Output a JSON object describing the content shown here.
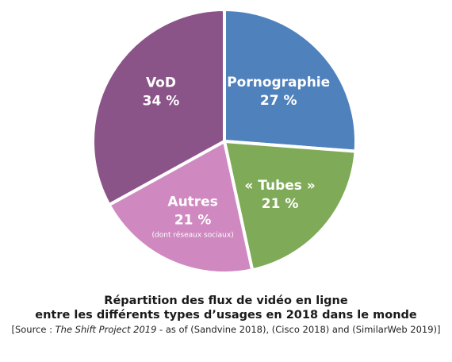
{
  "chart_data": {
    "type": "pie",
    "slices": [
      {
        "label": "Pornographie",
        "value": 27,
        "value_text": "27 %",
        "color": "#4f81bd"
      },
      {
        "label": "« Tubes »",
        "value": 21,
        "value_text": "21 %",
        "color": "#7faa57"
      },
      {
        "label": "Autres",
        "value": 21,
        "value_text": "21 %",
        "note": "(dont réseaux sociaux)",
        "color": "#cf89c0"
      },
      {
        "label": "VoD",
        "value": 34,
        "value_text": "34 %",
        "color": "#8b5489"
      }
    ]
  },
  "caption": {
    "line1": "Répartition des flux de vidéo en ligne",
    "line2": "entre les différents types d’usages en 2018 dans le monde",
    "source_prefix": "[Source : ",
    "source_italic": "The Shift Project 2019",
    "source_suffix": " - as of (Sandvine 2018), (Cisco 2018) and (SimilarWeb 2019)]"
  }
}
